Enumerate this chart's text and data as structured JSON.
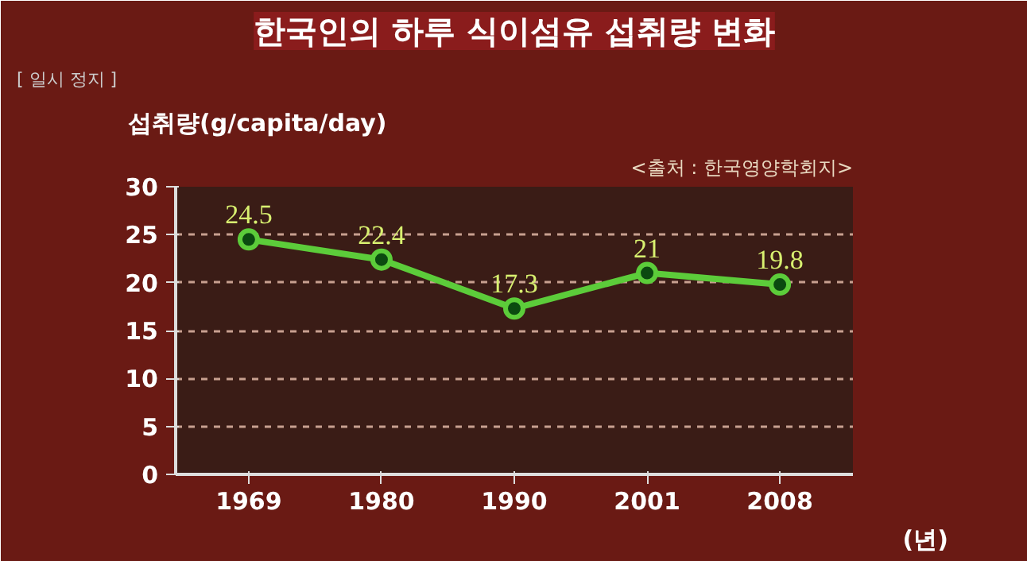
{
  "chart_data": {
    "type": "line",
    "title": "한국인의 하루 식이섬유 섭취량 변화",
    "ylabel": "섭취량(g/capita/day)",
    "xlabel": "(년)",
    "annotations": [
      "<출처 : 한국영양학회지>",
      "[ 일시 정지 ]"
    ],
    "categories": [
      "1969",
      "1980",
      "1990",
      "2001",
      "2008"
    ],
    "series": [
      {
        "color": "#5ccc3a",
        "values": [
          24.5,
          22.4,
          17.3,
          21,
          19.8
        ]
      }
    ],
    "ylim": [
      0,
      30
    ],
    "yticks": [
      0,
      5,
      10,
      15,
      20,
      25,
      30
    ],
    "grid": "y",
    "marker": "circle",
    "line_style": "solid",
    "data_labels": true
  }
}
